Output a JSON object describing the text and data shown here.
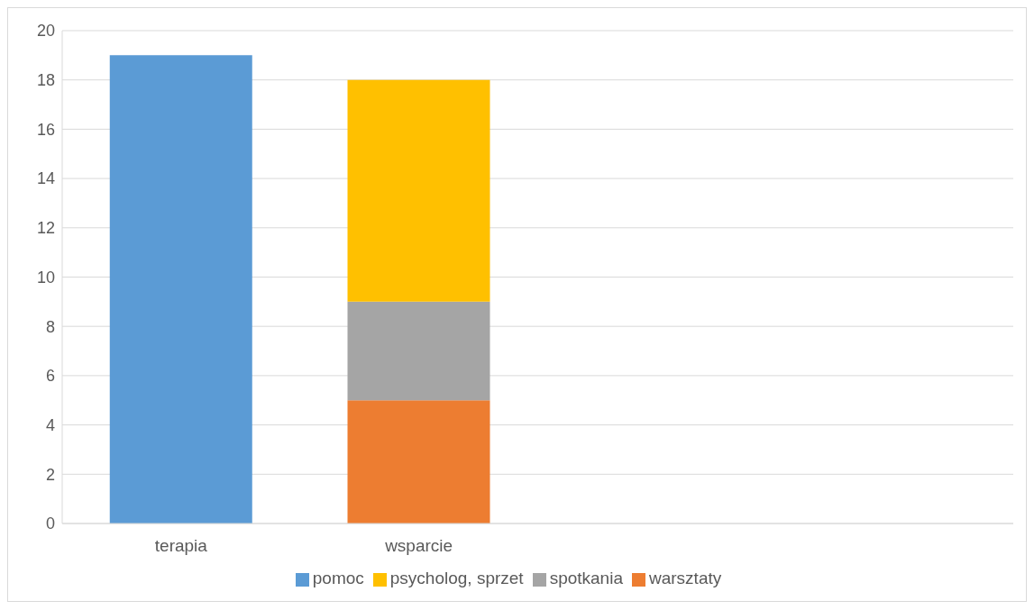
{
  "chart_data": {
    "type": "bar",
    "stacked": true,
    "categories": [
      "terapia",
      "wsparcie",
      null,
      null
    ],
    "series": [
      {
        "name": "pomoc",
        "color": "#5b9bd5",
        "values": [
          19,
          null,
          null,
          null
        ]
      },
      {
        "name": "warsztaty",
        "color": "#ed7d31",
        "values": [
          null,
          5,
          null,
          null
        ]
      },
      {
        "name": "spotkania",
        "color": "#a5a5a5",
        "values": [
          null,
          4,
          null,
          null
        ]
      },
      {
        "name": "psycholog, sprzet",
        "color": "#ffc000",
        "values": [
          null,
          9,
          null,
          null
        ]
      }
    ],
    "ylim": [
      0,
      20
    ],
    "yticks": [
      0,
      2,
      4,
      6,
      8,
      10,
      12,
      14,
      16,
      18,
      20
    ],
    "grid": "y",
    "legend": "bottom"
  }
}
